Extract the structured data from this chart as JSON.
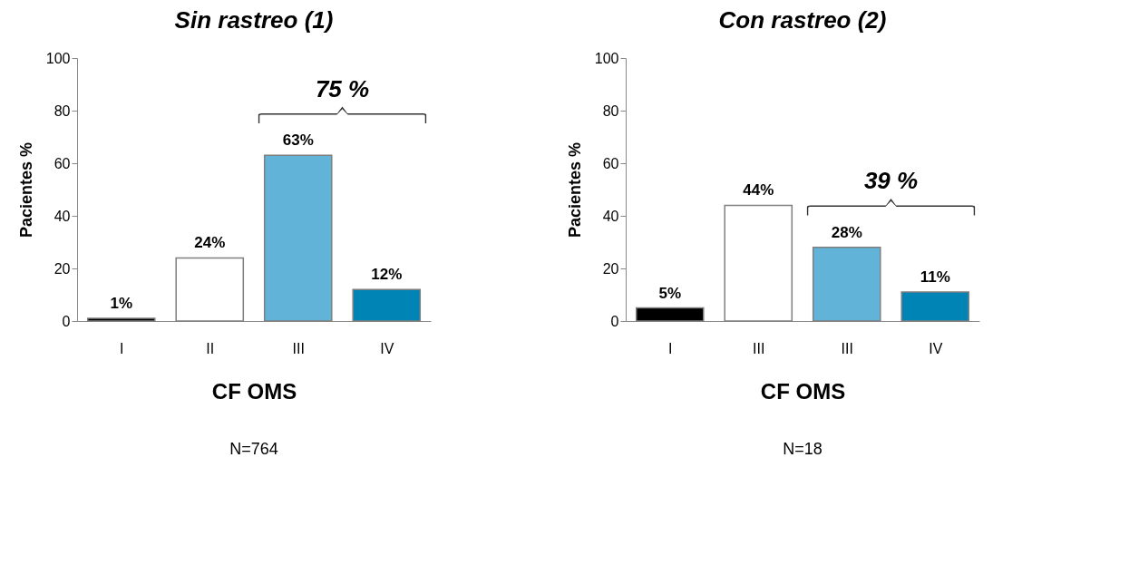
{
  "chart_data": [
    {
      "type": "bar",
      "title": "Sin rastreo (1)",
      "xlabel": "CF OMS",
      "ylabel": "Pacientes %",
      "categories": [
        "I",
        "II",
        "III",
        "IV"
      ],
      "values": [
        1,
        24,
        63,
        12
      ],
      "colors": [
        "#000000",
        "#ffffff",
        "#62b3d8",
        "#0083b5"
      ],
      "value_labels": [
        "1%",
        "24%",
        "63%",
        "12%"
      ],
      "ylim": [
        0,
        100
      ],
      "yticks": [
        0,
        20,
        40,
        60,
        80,
        100
      ],
      "grid": false,
      "legend": false,
      "annotations": [
        "75 %",
        "N=764"
      ]
    },
    {
      "type": "bar",
      "title": "Con rastreo (2)",
      "xlabel": "CF OMS",
      "ylabel": "Pacientes %",
      "categories": [
        "I",
        "III",
        "III",
        "IV"
      ],
      "values": [
        5,
        44,
        28,
        11
      ],
      "colors": [
        "#000000",
        "#ffffff",
        "#62b3d8",
        "#0083b5"
      ],
      "value_labels": [
        "5%",
        "44%",
        "28%",
        "11%"
      ],
      "ylim": [
        0,
        100
      ],
      "yticks": [
        0,
        20,
        40,
        60,
        80,
        100
      ],
      "grid": false,
      "legend": false,
      "annotations": [
        "39 %",
        "N=18"
      ]
    }
  ]
}
